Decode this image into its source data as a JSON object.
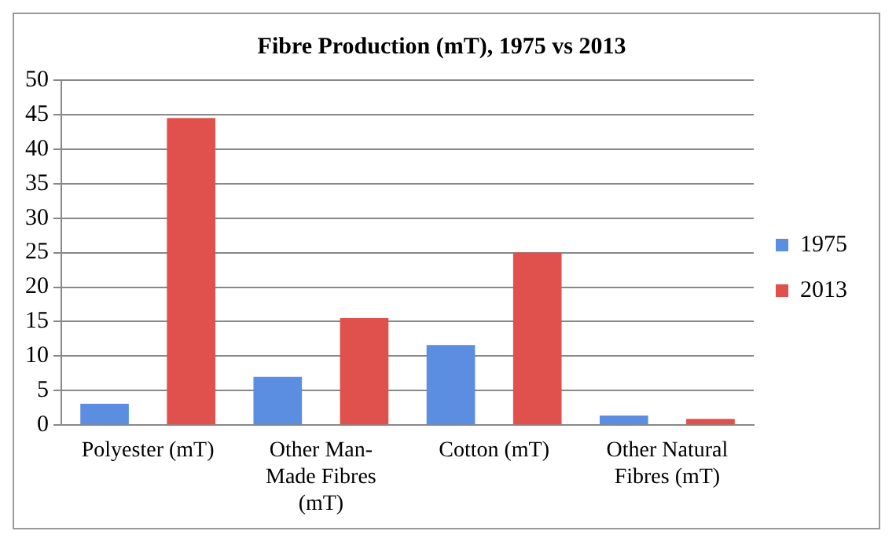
{
  "chart_data": {
    "type": "bar",
    "title": "Fibre Production (mT), 1975 vs 2013",
    "categories": [
      "Polyester (mT)",
      "Other Man-Made Fibres (mT)",
      "Cotton (mT)",
      "Other Natural Fibres (mT)"
    ],
    "series": [
      {
        "name": "1975",
        "color": "#5b8ee0",
        "values": [
          3.1,
          7.0,
          11.6,
          1.4
        ]
      },
      {
        "name": "2013",
        "color": "#e0504c",
        "values": [
          44.5,
          15.5,
          25,
          0.9
        ]
      }
    ],
    "ylim": [
      0,
      50
    ],
    "yticks": [
      0,
      5,
      10,
      15,
      20,
      25,
      30,
      35,
      40,
      45,
      50
    ],
    "grid": "y",
    "legend": "right"
  }
}
